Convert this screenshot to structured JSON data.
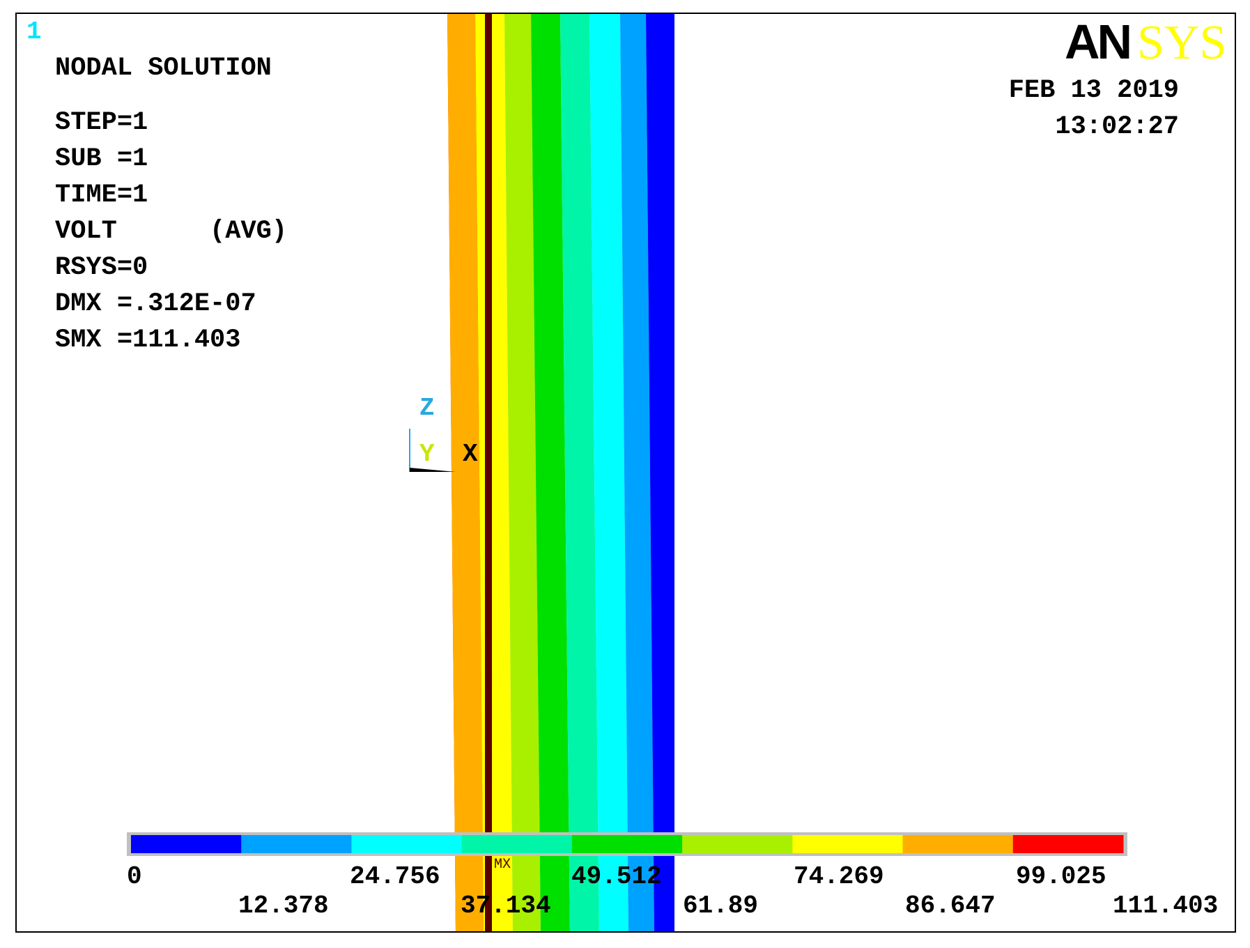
{
  "window_number": "1",
  "info": {
    "lines": [
      "NODAL SOLUTION",
      "STEP=1",
      "SUB =1",
      "TIME=1",
      "VOLT      (AVG)",
      "RSYS=0",
      "DMX =.312E-07",
      "SMX =111.403"
    ]
  },
  "logo": {
    "part1": "AN",
    "part2": "SYS"
  },
  "date": "FEB 13 2019",
  "time": "13:02:27",
  "triad": {
    "z": "Z",
    "y": "Y",
    "x": "X"
  },
  "mx_marker": "MX",
  "legend": {
    "colors": [
      "#0000ff",
      "#00a2ff",
      "#00ffff",
      "#00f5a8",
      "#00e000",
      "#a8f000",
      "#ffff00",
      "#ffae00",
      "#ff0000"
    ],
    "labels_top": [
      "0",
      "24.756",
      "49.512",
      "74.269",
      "99.025"
    ],
    "labels_bottom": [
      "12.378",
      "37.134",
      "61.89",
      "86.647",
      "111.403"
    ]
  },
  "model_bands": {
    "colors": [
      "#ff0000",
      "#ffae00",
      "#ffff00",
      "#a8f000",
      "#00e000",
      "#00f5a8",
      "#00ffff",
      "#00a2ff",
      "#0000ff"
    ],
    "edge_color": "#5a0000"
  }
}
